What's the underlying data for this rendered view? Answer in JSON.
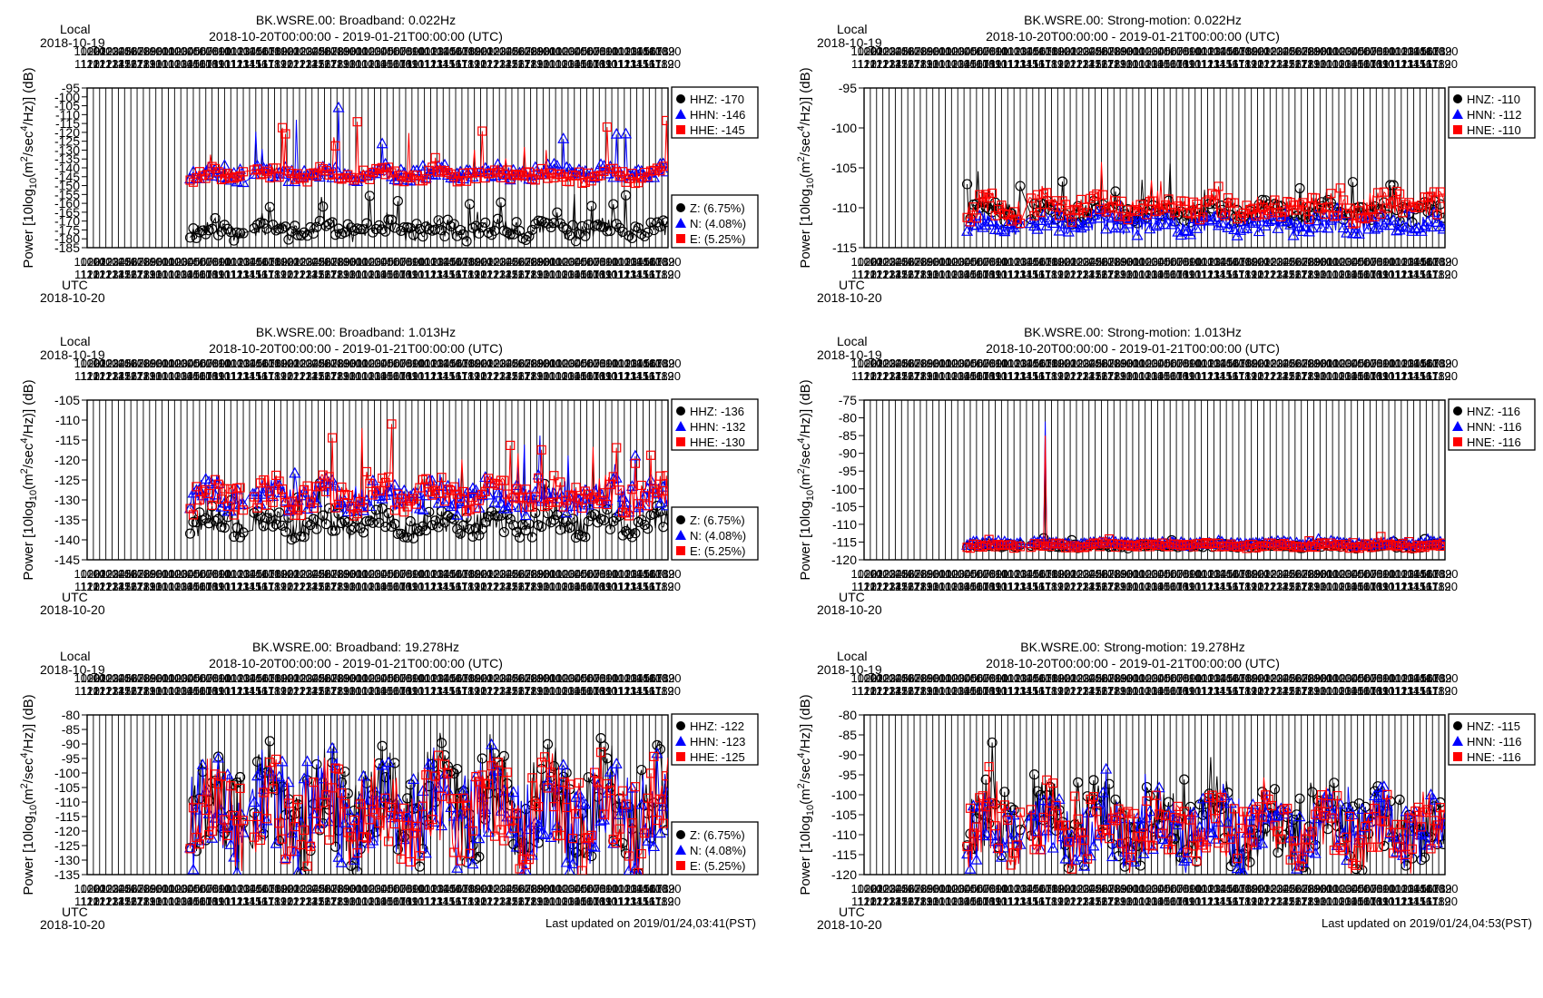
{
  "page": {
    "footer_left": "Last updated on 2019/01/24,03:41(PST)",
    "footer_right": "Last updated on 2019/01/24,04:53(PST)"
  },
  "colors": {
    "z": "#000000",
    "n": "#0000ff",
    "e": "#ff0000",
    "grid": "#000000",
    "line_z": "#000000",
    "line_n": "#0000ff",
    "line_e": "#ff0000"
  },
  "common": {
    "date_range": "2018-10-20T00:00:00 - 2019-01-21T00:00:00 (UTC)",
    "local_label": "Local",
    "local_date": "2018-10-19",
    "utc_label": "UTC",
    "utc_date": "2018-10-20",
    "ylabel": "Power [10log10(m2/sec4/Hz)] (dB)",
    "x_days": 93,
    "data_start_day": 16.5,
    "gap": [
      25.0,
      26.5
    ]
  },
  "chart_data": [
    {
      "type": "scatter",
      "title": "BK.WSRE.00: Broadband: 0.022Hz",
      "ylim": [
        -185,
        -95
      ],
      "yticks": [
        -95,
        -100,
        -105,
        -110,
        -115,
        -120,
        -125,
        -130,
        -135,
        -140,
        -145,
        -150,
        -155,
        -160,
        -165,
        -170,
        -175,
        -180,
        -185
      ],
      "grid": true,
      "legend_top": [
        "HHZ: -170",
        "HHN: -146",
        "HHE: -145"
      ],
      "legend_bottom": [
        "Z: (6.75%)",
        "N: (4.08%)",
        "E: (5.25%)"
      ],
      "series": [
        {
          "key": "z",
          "base": -175,
          "amp": 5,
          "spike": 18,
          "seed": 11
        },
        {
          "key": "n",
          "base": -143,
          "amp": 4,
          "spike": 35,
          "seed": 23
        },
        {
          "key": "e",
          "base": -144,
          "amp": 3.5,
          "spike": 30,
          "seed": 37
        }
      ]
    },
    {
      "type": "scatter",
      "title": "BK.WSRE.00: Strong-motion: 0.022Hz",
      "ylim": [
        -115,
        -95
      ],
      "yticks": [
        -95,
        -100,
        -105,
        -110,
        -115
      ],
      "grid": true,
      "legend_top": [
        "HNZ: -110",
        "HNN: -112",
        "HNE: -110"
      ],
      "legend_bottom": [],
      "series": [
        {
          "key": "z",
          "base": -110.5,
          "amp": 1.2,
          "spike": 5,
          "seed": 41
        },
        {
          "key": "n",
          "base": -112,
          "amp": 1.2,
          "spike": 3,
          "seed": 53
        },
        {
          "key": "e",
          "base": -110,
          "amp": 1.5,
          "spike": 4,
          "seed": 67
        }
      ]
    },
    {
      "type": "scatter",
      "title": "BK.WSRE.00: Broadband: 1.013Hz",
      "ylim": [
        -145,
        -105
      ],
      "yticks": [
        -105,
        -110,
        -115,
        -120,
        -125,
        -130,
        -135,
        -140,
        -145
      ],
      "grid": true,
      "legend_top": [
        "HHZ: -136",
        "HHN: -132",
        "HHE: -130"
      ],
      "legend_bottom": [
        "Z: (6.75%)",
        "N: (4.08%)",
        "E: (5.25%)"
      ],
      "series": [
        {
          "key": "z",
          "base": -136,
          "amp": 3,
          "spike": 8,
          "seed": 71
        },
        {
          "key": "n",
          "base": -129,
          "amp": 4,
          "spike": 14,
          "seed": 83
        },
        {
          "key": "e",
          "base": -129,
          "amp": 4,
          "spike": 14,
          "seed": 97
        }
      ]
    },
    {
      "type": "scatter",
      "title": "BK.WSRE.00: Strong-motion: 1.013Hz",
      "ylim": [
        -120,
        -75
      ],
      "yticks": [
        -75,
        -80,
        -85,
        -90,
        -95,
        -100,
        -105,
        -110,
        -115,
        -120
      ],
      "grid": true,
      "legend_top": [
        "HNZ: -116",
        "HNN: -116",
        "HNE: -116"
      ],
      "legend_bottom": [],
      "series": [
        {
          "key": "z",
          "base": -116,
          "amp": 0.6,
          "spike": 2,
          "seed": 101,
          "peak": -91
        },
        {
          "key": "n",
          "base": -115.5,
          "amp": 0.6,
          "spike": 2,
          "seed": 113,
          "peak": -81
        },
        {
          "key": "e",
          "base": -116,
          "amp": 0.6,
          "spike": 2,
          "seed": 127,
          "peak": -85
        }
      ]
    },
    {
      "type": "scatter",
      "title": "BK.WSRE.00: Broadband: 19.278Hz",
      "ylim": [
        -135,
        -80
      ],
      "yticks": [
        -80,
        -85,
        -90,
        -95,
        -100,
        -105,
        -110,
        -115,
        -120,
        -125,
        -130,
        -135
      ],
      "grid": true,
      "legend_top": [
        "HHZ: -122",
        "HHN: -123",
        "HHE: -125"
      ],
      "legend_bottom": [
        "Z: (6.75%)",
        "N: (4.08%)",
        "E: (5.25%)"
      ],
      "series": [
        {
          "key": "z",
          "base": -112,
          "amp": 18,
          "spike": 8,
          "seed": 131
        },
        {
          "key": "n",
          "base": -113,
          "amp": 17,
          "spike": 6,
          "seed": 139
        },
        {
          "key": "e",
          "base": -114,
          "amp": 16,
          "spike": 6,
          "seed": 149
        }
      ]
    },
    {
      "type": "scatter",
      "title": "BK.WSRE.00: Strong-motion: 19.278Hz",
      "ylim": [
        -120,
        -80
      ],
      "yticks": [
        -80,
        -85,
        -90,
        -95,
        -100,
        -105,
        -110,
        -115,
        -120
      ],
      "grid": true,
      "legend_top": [
        "HNZ: -115",
        "HNN: -116",
        "HNE: -116"
      ],
      "legend_bottom": [],
      "series": [
        {
          "key": "z",
          "base": -108,
          "amp": 9,
          "spike": 10,
          "seed": 151
        },
        {
          "key": "n",
          "base": -109,
          "amp": 8,
          "spike": 7,
          "seed": 163
        },
        {
          "key": "e",
          "base": -109,
          "amp": 8,
          "spike": 7,
          "seed": 173
        }
      ]
    }
  ]
}
